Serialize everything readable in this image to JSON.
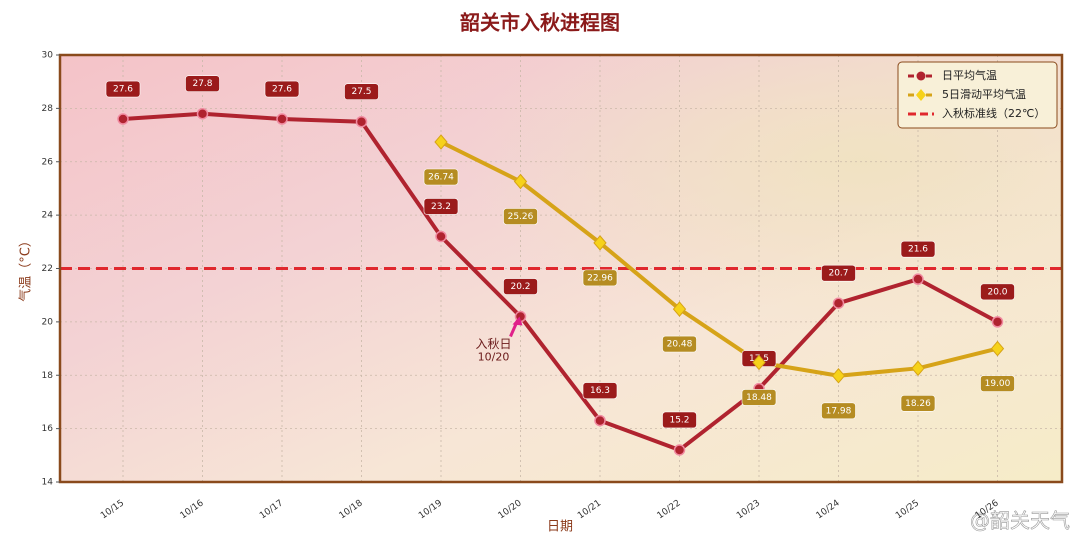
{
  "chart_data": {
    "type": "line",
    "title": "韶关市入秋进程图",
    "x_label": "日期",
    "y_label": "气温（°C）",
    "categories": [
      "10/15",
      "10/16",
      "10/17",
      "10/18",
      "10/19",
      "10/20",
      "10/21",
      "10/22",
      "10/23",
      "10/24",
      "10/25",
      "10/26"
    ],
    "series": [
      {
        "name": "日平均气温",
        "color": "#b0232f",
        "marker": "circle",
        "label_color": "#9b1b1b",
        "values": [
          27.6,
          27.8,
          27.6,
          27.5,
          23.2,
          20.2,
          16.3,
          15.2,
          17.5,
          20.7,
          21.6,
          20.0
        ],
        "value_labels": [
          "27.6",
          "27.8",
          "27.6",
          "27.5",
          "23.2",
          "20.2",
          "16.3",
          "15.2",
          "17.5",
          "20.7",
          "21.6",
          "20.0"
        ]
      },
      {
        "name": "5日滑动平均气温",
        "color": "#d6a318",
        "marker": "diamond",
        "label_color": "#b58c22",
        "values": [
          null,
          null,
          null,
          null,
          26.74,
          25.26,
          22.96,
          20.48,
          18.48,
          17.98,
          18.26,
          19.0
        ],
        "value_labels": [
          null,
          null,
          null,
          null,
          "26.74",
          "25.26",
          "22.96",
          "20.48",
          "18.48",
          "17.98",
          "18.26",
          "19.00"
        ]
      }
    ],
    "reference_line": {
      "name": "入秋标准线（22℃）",
      "value": 22,
      "color": "#e0282e"
    },
    "annotation": {
      "text": "入秋日",
      "date": "10/20"
    },
    "ylim": [
      14,
      30
    ],
    "yticks": [
      14,
      16,
      18,
      20,
      22,
      24,
      26,
      28,
      30
    ],
    "grid": true,
    "legend": "upper right",
    "watermark": "@韶关天气"
  }
}
